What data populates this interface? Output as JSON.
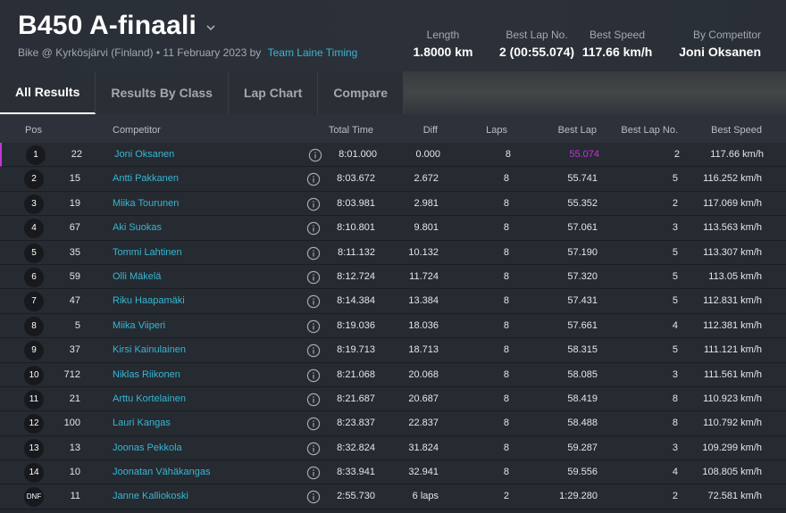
{
  "header": {
    "title": "B450 A-finaali",
    "subtitle": "Bike @ Kyrkösjärvi (Finland) • 11 February 2023 by",
    "organizer": "Team Laine Timing",
    "stats": {
      "length_label": "Length",
      "length_value": "1.8000 km",
      "best_lap_label": "Best Lap No.",
      "best_lap_value": "2 (00:55.074)",
      "best_speed_label": "Best Speed",
      "best_speed_value": "117.66 km/h",
      "by_label": "By Competitor",
      "by_value": "Joni Oksanen"
    }
  },
  "tabs": [
    {
      "label": "All Results",
      "active": true
    },
    {
      "label": "Results By Class",
      "active": false
    },
    {
      "label": "Lap Chart",
      "active": false
    },
    {
      "label": "Compare",
      "active": false
    }
  ],
  "columns": {
    "pos": "Pos",
    "competitor": "Competitor",
    "total": "Total Time",
    "diff": "Diff",
    "laps": "Laps",
    "best_lap": "Best Lap",
    "best_lap_no": "Best Lap No.",
    "best_speed": "Best Speed"
  },
  "rows": [
    {
      "pos": "1",
      "num": "22",
      "name": "Joni Oksanen",
      "total": "8:01.000",
      "diff": "0.000",
      "laps": "8",
      "best": "55.074",
      "best_no": "2",
      "speed": "117.66 km/h"
    },
    {
      "pos": "2",
      "num": "15",
      "name": "Antti Pakkanen",
      "total": "8:03.672",
      "diff": "2.672",
      "laps": "8",
      "best": "55.741",
      "best_no": "5",
      "speed": "116.252 km/h"
    },
    {
      "pos": "3",
      "num": "19",
      "name": "Miika Tourunen",
      "total": "8:03.981",
      "diff": "2.981",
      "laps": "8",
      "best": "55.352",
      "best_no": "2",
      "speed": "117.069 km/h"
    },
    {
      "pos": "4",
      "num": "67",
      "name": "Aki Suokas",
      "total": "8:10.801",
      "diff": "9.801",
      "laps": "8",
      "best": "57.061",
      "best_no": "3",
      "speed": "113.563 km/h"
    },
    {
      "pos": "5",
      "num": "35",
      "name": "Tommi Lahtinen",
      "total": "8:11.132",
      "diff": "10.132",
      "laps": "8",
      "best": "57.190",
      "best_no": "5",
      "speed": "113.307 km/h"
    },
    {
      "pos": "6",
      "num": "59",
      "name": "Olli Mäkelä",
      "total": "8:12.724",
      "diff": "11.724",
      "laps": "8",
      "best": "57.320",
      "best_no": "5",
      "speed": "113.05 km/h"
    },
    {
      "pos": "7",
      "num": "47",
      "name": "Riku Haapamäki",
      "total": "8:14.384",
      "diff": "13.384",
      "laps": "8",
      "best": "57.431",
      "best_no": "5",
      "speed": "112.831 km/h"
    },
    {
      "pos": "8",
      "num": "5",
      "name": "Miika Viiperi",
      "total": "8:19.036",
      "diff": "18.036",
      "laps": "8",
      "best": "57.661",
      "best_no": "4",
      "speed": "112.381 km/h"
    },
    {
      "pos": "9",
      "num": "37",
      "name": "Kirsi Kainulainen",
      "total": "8:19.713",
      "diff": "18.713",
      "laps": "8",
      "best": "58.315",
      "best_no": "5",
      "speed": "111.121 km/h"
    },
    {
      "pos": "10",
      "num": "712",
      "name": "Niklas Riikonen",
      "total": "8:21.068",
      "diff": "20.068",
      "laps": "8",
      "best": "58.085",
      "best_no": "3",
      "speed": "111.561 km/h"
    },
    {
      "pos": "11",
      "num": "21",
      "name": "Arttu Kortelainen",
      "total": "8:21.687",
      "diff": "20.687",
      "laps": "8",
      "best": "58.419",
      "best_no": "8",
      "speed": "110.923 km/h"
    },
    {
      "pos": "12",
      "num": "100",
      "name": "Lauri Kangas",
      "total": "8:23.837",
      "diff": "22.837",
      "laps": "8",
      "best": "58.488",
      "best_no": "8",
      "speed": "110.792 km/h"
    },
    {
      "pos": "13",
      "num": "13",
      "name": "Joonas Pekkola",
      "total": "8:32.824",
      "diff": "31.824",
      "laps": "8",
      "best": "59.287",
      "best_no": "3",
      "speed": "109.299 km/h"
    },
    {
      "pos": "14",
      "num": "10",
      "name": "Joonatan Vähäkangas",
      "total": "8:33.941",
      "diff": "32.941",
      "laps": "8",
      "best": "59.556",
      "best_no": "4",
      "speed": "108.805 km/h"
    },
    {
      "pos": "DNF",
      "num": "11",
      "name": "Janne Kalliokoski",
      "total": "2:55.730",
      "diff": "6 laps",
      "laps": "2",
      "best": "1:29.280",
      "best_no": "2",
      "speed": "72.581 km/h"
    }
  ],
  "colors": {
    "accent": "#36b7d4",
    "best_highlight": "#c136d8",
    "background": "#23272e"
  },
  "icons": {
    "title_chevron": "chevron-down-icon",
    "row_info": "info-icon"
  }
}
